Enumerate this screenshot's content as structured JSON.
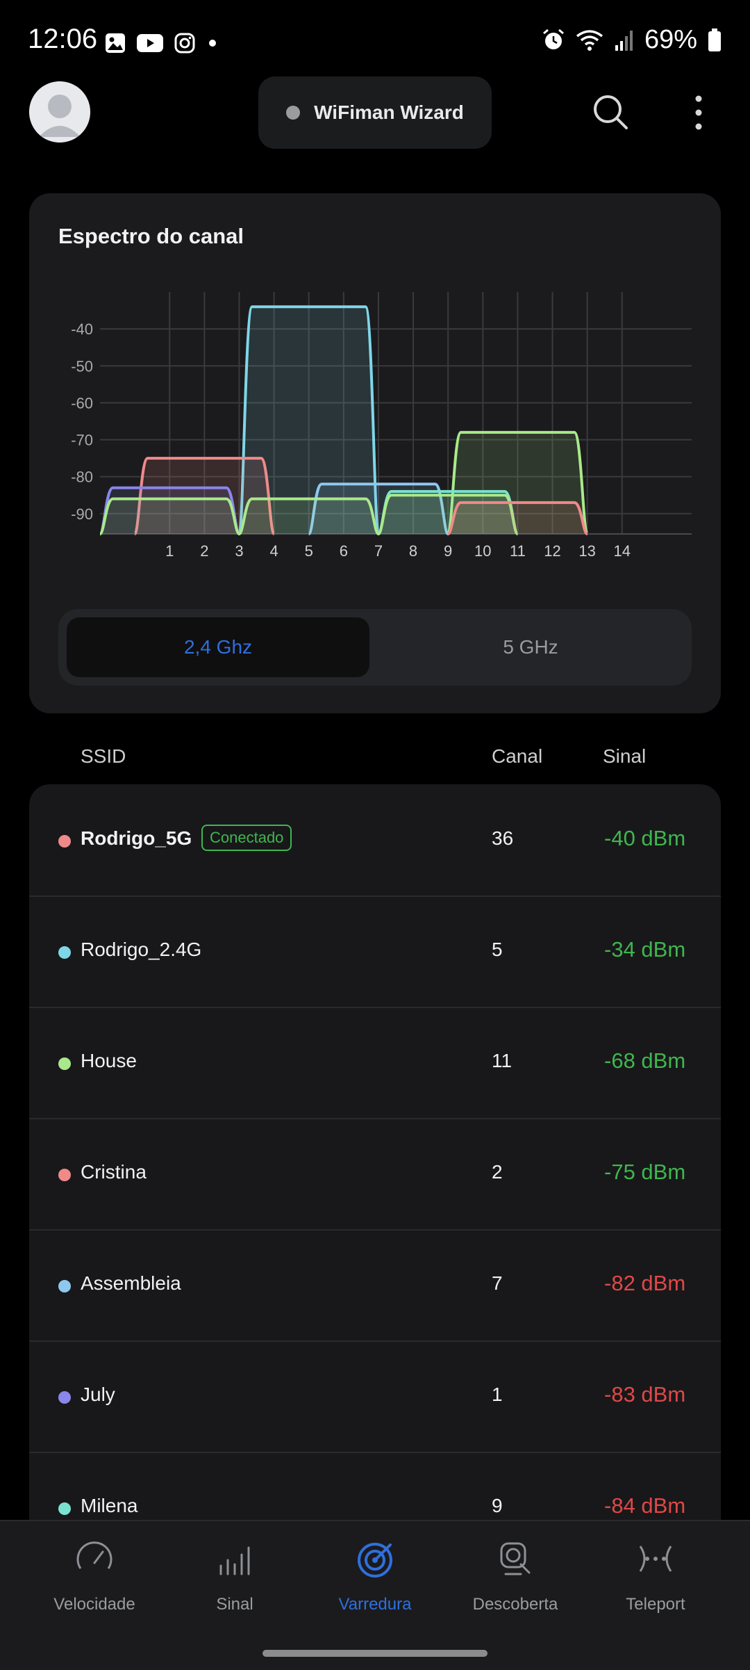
{
  "status_bar": {
    "time": "12:06",
    "battery_text": "69%",
    "left_icons": [
      "gallery-icon",
      "youtube-icon",
      "instagram-icon",
      "notification-dot-icon"
    ],
    "right_icons": [
      "alarm-icon",
      "wifi-icon",
      "cell-signal-icon",
      "battery-icon"
    ]
  },
  "header": {
    "wizard_label": "WiFiman Wizard"
  },
  "spectrum_card": {
    "title": "Espectro do canal",
    "band_options": [
      "2,4 Ghz",
      "5 GHz"
    ],
    "selected_band": "2,4 Ghz"
  },
  "chart_data": {
    "type": "area",
    "title": "Espectro do canal",
    "x_ticks": [
      "1",
      "2",
      "3",
      "4",
      "5",
      "6",
      "7",
      "8",
      "9",
      "10",
      "11",
      "12",
      "13",
      "14"
    ],
    "y_ticks": [
      "-40",
      "-50",
      "-60",
      "-70",
      "-80",
      "-90"
    ],
    "xlim": [
      -1,
      16
    ],
    "ylim": [
      -95.5,
      -30
    ],
    "grid": true,
    "series": [
      {
        "name": "Rodrigo_2.4G",
        "channel": 5,
        "dbm": -34,
        "color": "#7fd6e8"
      },
      {
        "name": "House",
        "channel": 11,
        "dbm": -68,
        "color": "#a9e98b"
      },
      {
        "name": "Cristina",
        "channel": 2,
        "dbm": -75,
        "color": "#f08a8a"
      },
      {
        "name": "Assembleia",
        "channel": 7,
        "dbm": -82,
        "color": "#8fc8ef"
      },
      {
        "name": "July",
        "channel": 1,
        "dbm": -83,
        "color": "#8a86ea"
      },
      {
        "name": "Milena",
        "channel": 9,
        "dbm": -84,
        "color": "#7ae3cf"
      },
      {
        "name": "",
        "channel": 9,
        "dbm": -85,
        "color": "#a9e98b"
      },
      {
        "name": "",
        "channel": 1,
        "dbm": -86,
        "color": "#a9e98b"
      },
      {
        "name": "",
        "channel": 5,
        "dbm": -86,
        "color": "#a9e98b"
      },
      {
        "name": "",
        "channel": 11,
        "dbm": -87,
        "color": "#f08a8a"
      }
    ]
  },
  "list": {
    "headers": {
      "ssid": "SSID",
      "canal": "Canal",
      "sinal": "Sinal"
    },
    "rows": [
      {
        "ssid": "Rodrigo_5G",
        "badge": "Conectado",
        "canal": "36",
        "sinal": "-40 dBm",
        "dot_color": "#f08a8a",
        "sinal_color": "#3fb64f"
      },
      {
        "ssid": "Rodrigo_2.4G",
        "canal": "5",
        "sinal": "-34 dBm",
        "dot_color": "#7fd6e8",
        "sinal_color": "#3fb64f"
      },
      {
        "ssid": "House",
        "canal": "11",
        "sinal": "-68 dBm",
        "dot_color": "#a9e98b",
        "sinal_color": "#3fb64f"
      },
      {
        "ssid": "Cristina",
        "canal": "2",
        "sinal": "-75 dBm",
        "dot_color": "#f08a8a",
        "sinal_color": "#3fb64f"
      },
      {
        "ssid": "Assembleia",
        "canal": "7",
        "sinal": "-82 dBm",
        "dot_color": "#8fc8ef",
        "sinal_color": "#e04848"
      },
      {
        "ssid": "July",
        "canal": "1",
        "sinal": "-83 dBm",
        "dot_color": "#8a86ea",
        "sinal_color": "#e04848"
      },
      {
        "ssid": "Milena",
        "canal": "9",
        "sinal": "-84 dBm",
        "dot_color": "#7ae3cf",
        "sinal_color": "#e04848"
      }
    ]
  },
  "bottom_nav": {
    "items": [
      {
        "label": "Velocidade",
        "icon": "speedometer-icon"
      },
      {
        "label": "Sinal",
        "icon": "signal-bars-icon"
      },
      {
        "label": "Varredura",
        "icon": "radar-icon"
      },
      {
        "label": "Descoberta",
        "icon": "device-search-icon"
      },
      {
        "label": "Teleport",
        "icon": "teleport-icon"
      }
    ],
    "active": "Varredura"
  },
  "colors": {
    "accent_blue": "#2f6fde",
    "good_signal": "#3fb64f",
    "bad_signal": "#e04848"
  }
}
